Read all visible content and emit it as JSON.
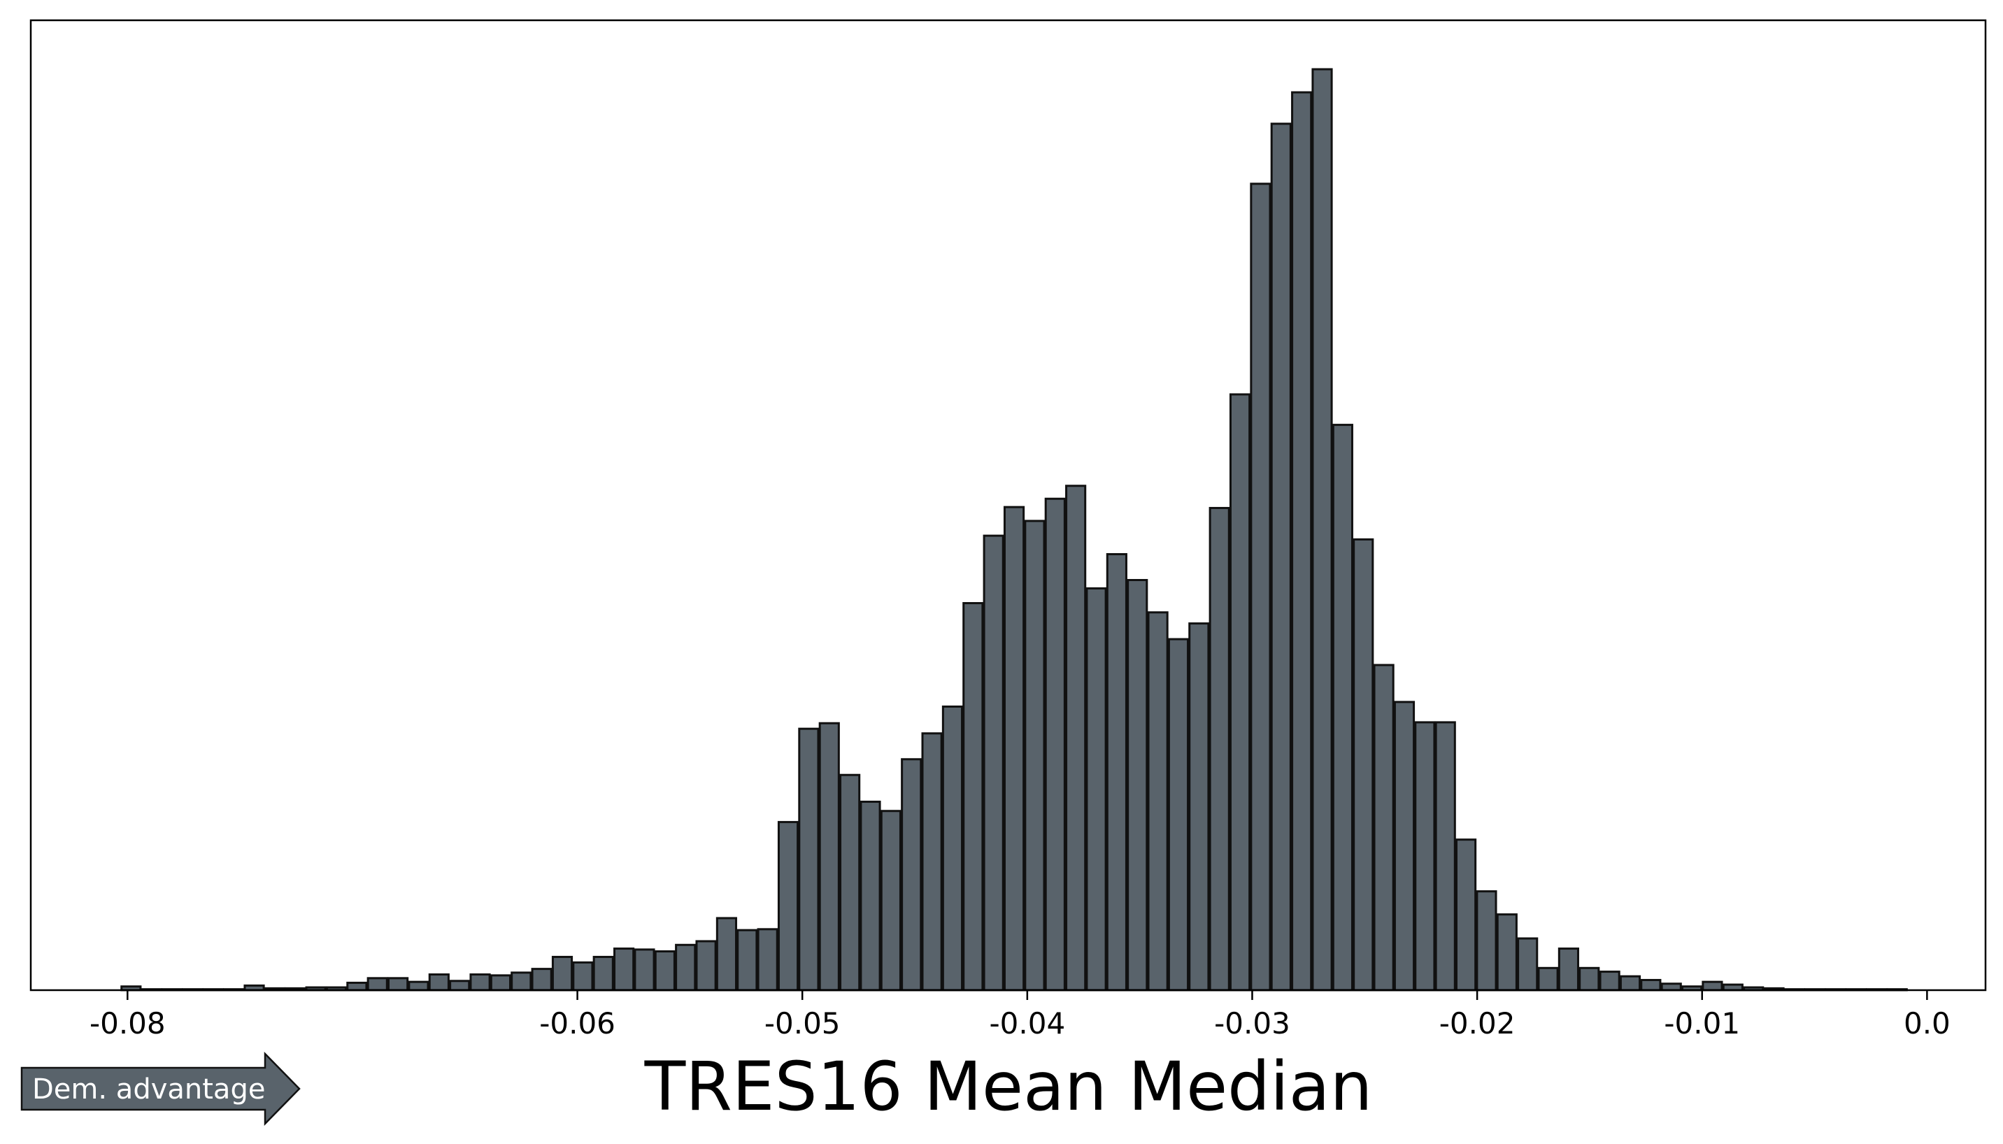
{
  "colors": {
    "bar_fill": "#59636b",
    "bar_edge": "#111111",
    "arrow_fill": "#59636b",
    "arrow_text": "#ffffff"
  },
  "annotation": {
    "arrow_label": "Dem. advantage"
  },
  "chart_data": {
    "type": "bar",
    "title": "",
    "xlabel": "TRES16 Mean Median",
    "ylabel": "",
    "xlim": [
      -0.0843,
      0.0026
    ],
    "ylim": [
      0,
      1.05
    ],
    "xticks": [
      -0.08,
      -0.06,
      -0.05,
      -0.04,
      -0.03,
      -0.02,
      -0.01,
      0.0
    ],
    "xtick_labels": [
      "-0.08",
      "-0.06",
      "-0.05",
      "-0.04",
      "-0.03",
      "-0.02",
      "-0.01",
      "0.0"
    ],
    "yticks_shown": false,
    "grid": false,
    "x_start": -0.0803,
    "bin_width": 0.000913,
    "values": [
      0.004,
      0.001,
      0.001,
      0.001,
      0.001,
      0.001,
      0.005,
      0.002,
      0.002,
      0.003,
      0.003,
      0.008,
      0.013,
      0.013,
      0.009,
      0.017,
      0.01,
      0.017,
      0.016,
      0.019,
      0.023,
      0.036,
      0.03,
      0.036,
      0.045,
      0.044,
      0.042,
      0.049,
      0.053,
      0.078,
      0.065,
      0.066,
      0.182,
      0.283,
      0.289,
      0.233,
      0.204,
      0.194,
      0.25,
      0.278,
      0.307,
      0.419,
      0.492,
      0.523,
      0.508,
      0.532,
      0.546,
      0.435,
      0.472,
      0.444,
      0.409,
      0.38,
      0.397,
      0.522,
      0.645,
      0.873,
      0.938,
      0.972,
      0.997,
      0.612,
      0.488,
      0.352,
      0.312,
      0.29,
      0.29,
      0.163,
      0.107,
      0.082,
      0.056,
      0.024,
      0.045,
      0.024,
      0.02,
      0.015,
      0.011,
      0.007,
      0.004,
      0.009,
      0.006,
      0.003,
      0.002,
      0.001,
      0.001,
      0.001,
      0.001,
      0.001,
      0.001
    ]
  }
}
